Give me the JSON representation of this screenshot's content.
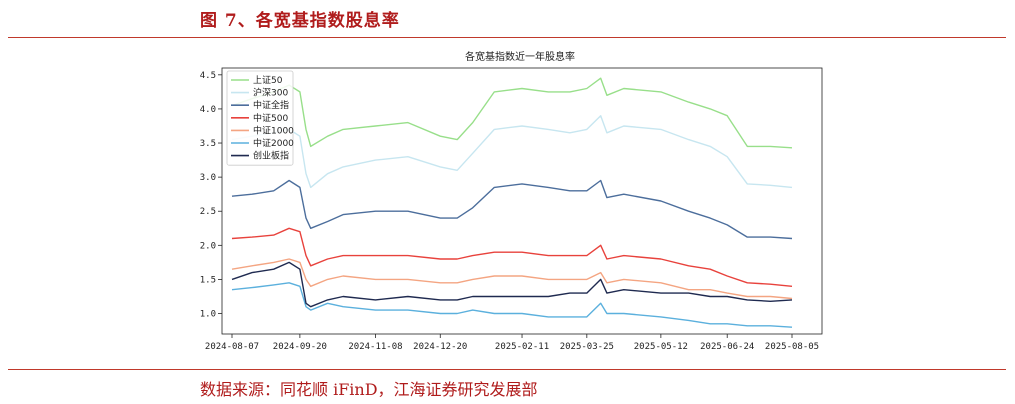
{
  "header": {
    "figure_title": "图 7、各宽基指数股息率"
  },
  "footer": {
    "source": "数据来源：同花顺 iFinD，江海证券研究发展部"
  },
  "chart_data": {
    "type": "line",
    "title": "各宽基指数近一年股息率",
    "xlabel": "",
    "ylabel": "",
    "ylim": [
      0.7,
      4.6
    ],
    "yticks": [
      "1.0",
      "1.5",
      "2.0",
      "2.5",
      "3.0",
      "3.5",
      "4.0",
      "4.5"
    ],
    "xticks": [
      "2024-08-07",
      "2024-09-20",
      "2024-11-08",
      "2024-12-20",
      "2025-02-11",
      "2025-03-25",
      "2025-05-12",
      "2025-06-24",
      "2025-08-05"
    ],
    "grid": false,
    "legend_position": "top-left",
    "x": [
      "2024-08-07",
      "2024-08-20",
      "2024-09-03",
      "2024-09-13",
      "2024-09-20",
      "2024-09-24",
      "2024-09-27",
      "2024-10-08",
      "2024-10-18",
      "2024-11-08",
      "2024-11-29",
      "2024-12-20",
      "2024-12-31",
      "2025-01-10",
      "2025-01-24",
      "2025-02-11",
      "2025-02-28",
      "2025-03-14",
      "2025-03-25",
      "2025-04-03",
      "2025-04-07",
      "2025-04-18",
      "2025-05-12",
      "2025-05-30",
      "2025-06-13",
      "2025-06-24",
      "2025-07-07",
      "2025-07-22",
      "2025-08-05"
    ],
    "series": [
      {
        "name": "上证50",
        "color": "#98df8a",
        "values": [
          4.05,
          4.15,
          4.25,
          4.35,
          4.25,
          3.7,
          3.45,
          3.6,
          3.7,
          3.75,
          3.8,
          3.6,
          3.55,
          3.8,
          4.25,
          4.3,
          4.25,
          4.25,
          4.3,
          4.45,
          4.2,
          4.3,
          4.25,
          4.1,
          4.0,
          3.9,
          3.45,
          3.45,
          3.43
        ]
      },
      {
        "name": "沪深300",
        "color": "#c7e6f0",
        "values": [
          3.55,
          3.6,
          3.65,
          3.7,
          3.6,
          3.05,
          2.85,
          3.05,
          3.15,
          3.25,
          3.3,
          3.15,
          3.1,
          3.35,
          3.7,
          3.75,
          3.7,
          3.65,
          3.7,
          3.9,
          3.65,
          3.75,
          3.7,
          3.55,
          3.45,
          3.3,
          2.9,
          2.88,
          2.85
        ]
      },
      {
        "name": "中证全指",
        "color": "#4c6e9c",
        "values": [
          2.72,
          2.75,
          2.8,
          2.95,
          2.85,
          2.4,
          2.25,
          2.35,
          2.45,
          2.5,
          2.5,
          2.4,
          2.4,
          2.55,
          2.85,
          2.9,
          2.85,
          2.8,
          2.8,
          2.95,
          2.7,
          2.75,
          2.65,
          2.5,
          2.4,
          2.3,
          2.12,
          2.12,
          2.1
        ]
      },
      {
        "name": "中证500",
        "color": "#e8423c",
        "values": [
          2.1,
          2.12,
          2.15,
          2.25,
          2.2,
          1.85,
          1.7,
          1.8,
          1.85,
          1.85,
          1.85,
          1.8,
          1.8,
          1.85,
          1.9,
          1.9,
          1.85,
          1.85,
          1.85,
          2.0,
          1.8,
          1.85,
          1.8,
          1.7,
          1.65,
          1.55,
          1.45,
          1.43,
          1.4
        ]
      },
      {
        "name": "中证1000",
        "color": "#f4a582",
        "values": [
          1.65,
          1.7,
          1.75,
          1.8,
          1.75,
          1.5,
          1.4,
          1.5,
          1.55,
          1.5,
          1.5,
          1.45,
          1.45,
          1.5,
          1.55,
          1.55,
          1.5,
          1.5,
          1.5,
          1.6,
          1.45,
          1.5,
          1.45,
          1.35,
          1.35,
          1.3,
          1.25,
          1.25,
          1.22
        ]
      },
      {
        "name": "中证2000",
        "color": "#5bb0dd",
        "values": [
          1.35,
          1.38,
          1.42,
          1.45,
          1.4,
          1.1,
          1.05,
          1.15,
          1.1,
          1.05,
          1.05,
          1.0,
          1.0,
          1.05,
          1.0,
          1.0,
          0.95,
          0.95,
          0.95,
          1.15,
          1.0,
          1.0,
          0.95,
          0.9,
          0.85,
          0.85,
          0.82,
          0.82,
          0.8
        ]
      },
      {
        "name": "创业板指",
        "color": "#1f2a50",
        "values": [
          1.5,
          1.6,
          1.65,
          1.75,
          1.65,
          1.15,
          1.1,
          1.2,
          1.25,
          1.2,
          1.25,
          1.2,
          1.2,
          1.25,
          1.25,
          1.25,
          1.25,
          1.3,
          1.3,
          1.5,
          1.3,
          1.35,
          1.3,
          1.3,
          1.25,
          1.25,
          1.2,
          1.18,
          1.2
        ]
      }
    ]
  }
}
